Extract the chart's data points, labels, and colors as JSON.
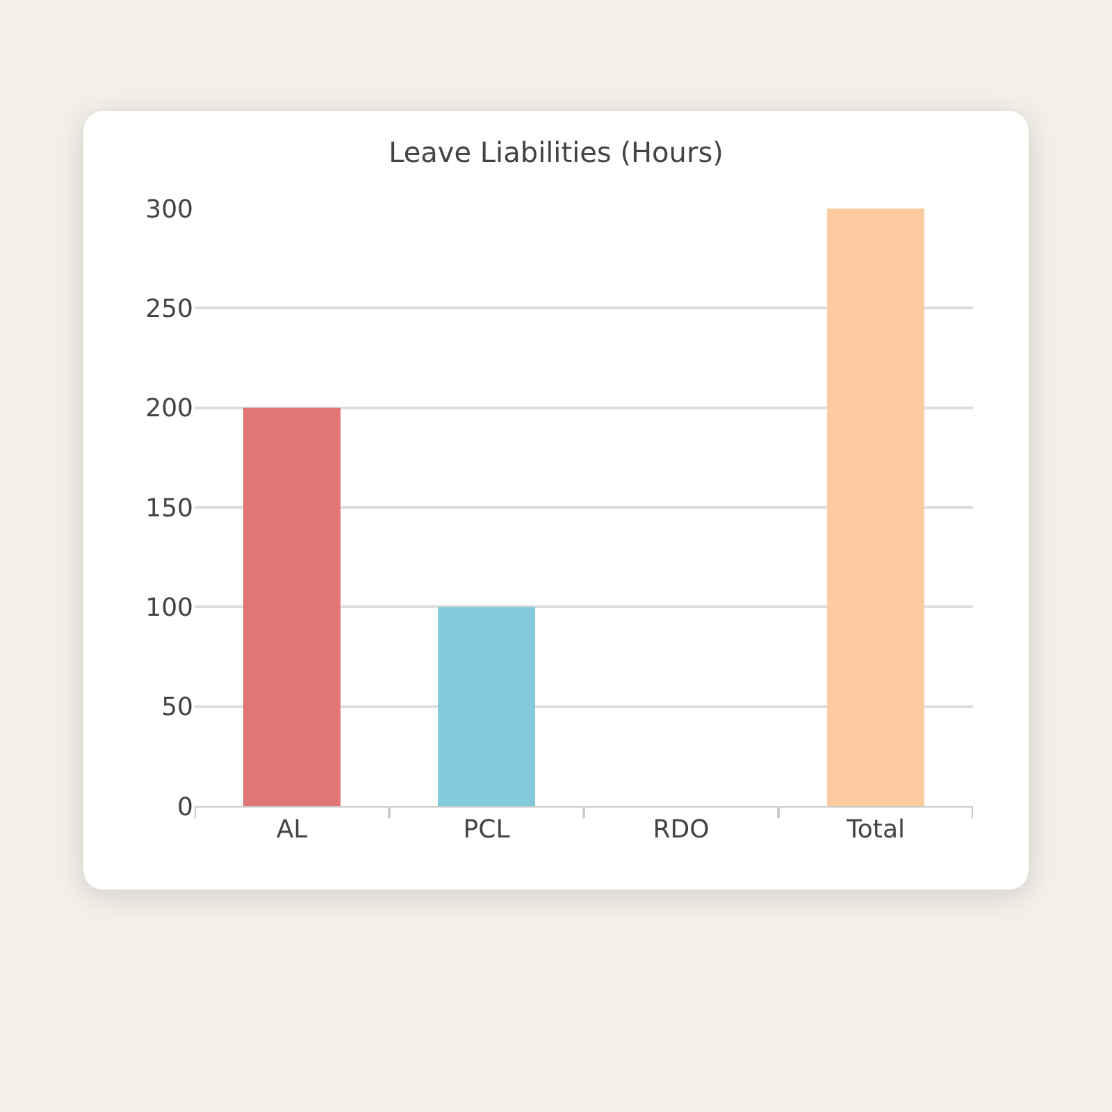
{
  "chart_data": {
    "type": "bar",
    "title": "Leave Liabilities (Hours)",
    "categories": [
      "AL",
      "PCL",
      "RDO",
      "Total"
    ],
    "values": [
      200,
      100,
      0,
      300
    ],
    "colors": [
      "#e07676",
      "#82c9d9",
      "#82c9d9",
      "#fccca0"
    ],
    "ylim": [
      0,
      300
    ],
    "yticks": [
      0,
      50,
      100,
      150,
      200,
      250,
      300
    ],
    "grid": "y"
  }
}
